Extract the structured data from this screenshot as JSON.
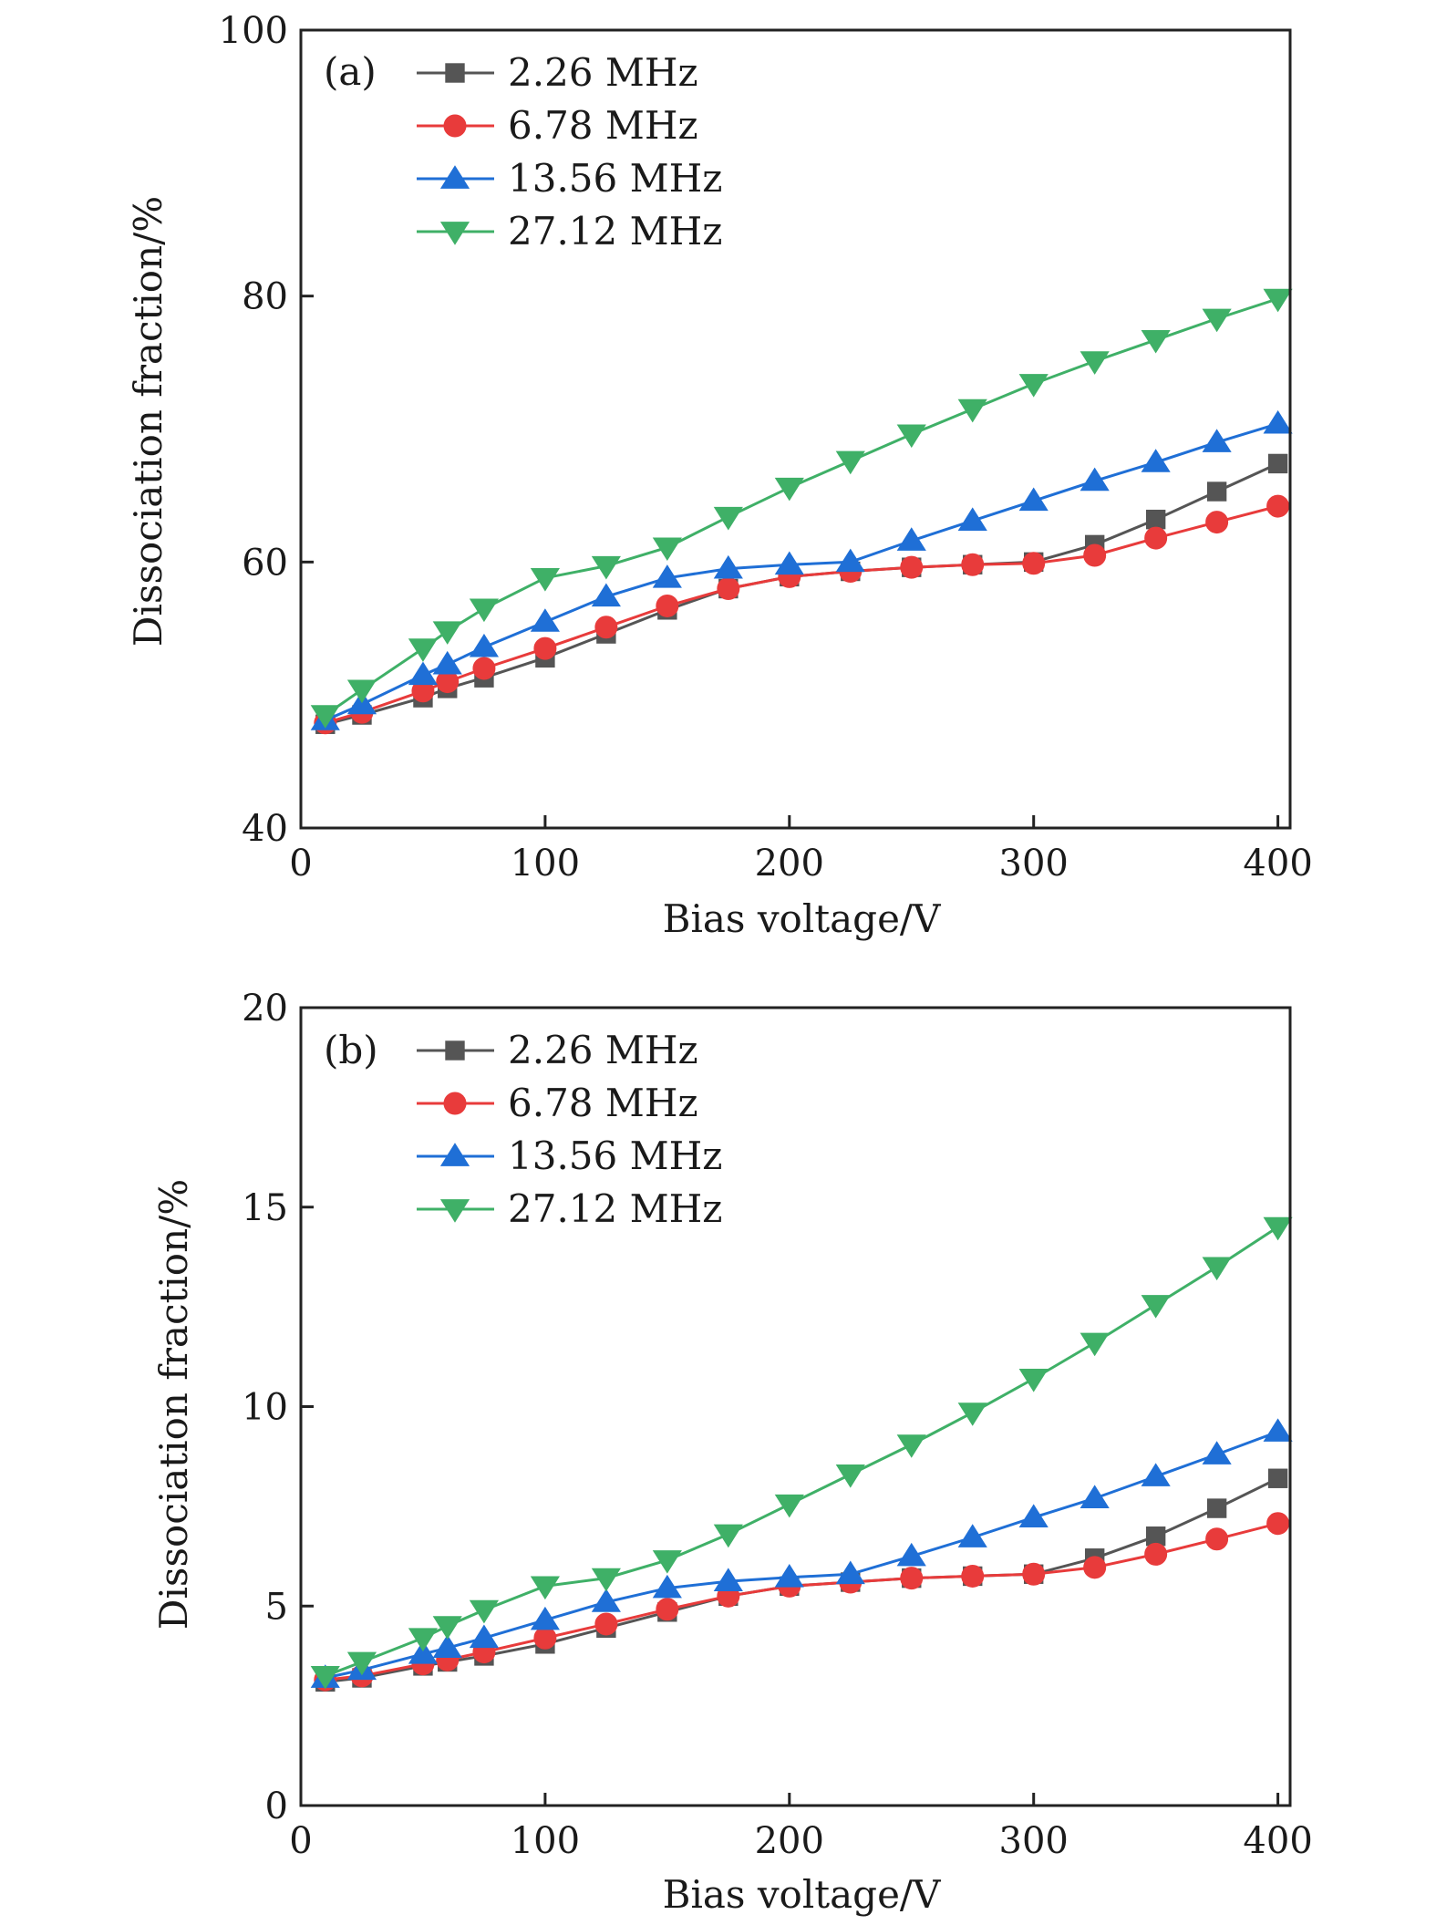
{
  "panels": [
    {
      "tag": "(a)",
      "xlabel": "Bias voltage/V",
      "ylabel": "Dissociation fraction/%",
      "xlim": [
        0,
        405
      ],
      "ylim": [
        40,
        100
      ],
      "xticks": [
        0,
        100,
        200,
        300,
        400
      ],
      "yticks": [
        40,
        60,
        80,
        100
      ],
      "xtick_labels": [
        "0",
        "100",
        "200",
        "300",
        "400"
      ],
      "ytick_labels": [
        "40",
        "60",
        "80",
        "100"
      ]
    },
    {
      "tag": "(b)",
      "xlabel": "Bias voltage/V",
      "ylabel": "Dissociation fraction/%",
      "xlim": [
        0,
        405
      ],
      "ylim": [
        0,
        20
      ],
      "xticks": [
        0,
        100,
        200,
        300,
        400
      ],
      "yticks": [
        0,
        5,
        10,
        15,
        20
      ],
      "xtick_labels": [
        "0",
        "100",
        "200",
        "300",
        "400"
      ],
      "ytick_labels": [
        "0",
        "5",
        "10",
        "15",
        "20"
      ]
    }
  ],
  "legend_position": "top-left",
  "chart_data": [
    {
      "type": "line",
      "x": [
        10,
        25,
        50,
        60,
        75,
        100,
        125,
        150,
        175,
        200,
        225,
        250,
        275,
        300,
        325,
        350,
        375,
        400
      ],
      "xlim": [
        0,
        405
      ],
      "ylim": [
        40,
        100
      ],
      "series": [
        {
          "name": "2.26 MHz",
          "marker": "square",
          "color": "#555555",
          "values": [
            47.8,
            48.5,
            49.8,
            50.5,
            51.3,
            52.8,
            54.6,
            56.4,
            58.0,
            58.9,
            59.3,
            59.6,
            59.8,
            60.0,
            61.3,
            63.2,
            65.3,
            67.4
          ]
        },
        {
          "name": "6.78 MHz",
          "marker": "circle",
          "color": "#e83b3b",
          "values": [
            47.9,
            48.7,
            50.3,
            51.0,
            52.0,
            53.5,
            55.1,
            56.7,
            58.0,
            58.9,
            59.3,
            59.6,
            59.8,
            59.9,
            60.5,
            61.8,
            63.0,
            64.2
          ]
        },
        {
          "name": "13.56 MHz",
          "marker": "triangle-up",
          "color": "#1f6fd6",
          "values": [
            48.1,
            49.3,
            51.5,
            52.3,
            53.6,
            55.5,
            57.4,
            58.8,
            59.5,
            59.8,
            60.0,
            61.6,
            63.1,
            64.6,
            66.1,
            67.5,
            69.0,
            70.4
          ]
        },
        {
          "name": "27.12 MHz",
          "marker": "triangle-down",
          "color": "#3fb067",
          "values": [
            48.5,
            50.4,
            53.5,
            54.8,
            56.5,
            58.8,
            59.7,
            61.1,
            63.4,
            65.6,
            67.6,
            69.6,
            71.5,
            73.4,
            75.1,
            76.7,
            78.3,
            79.8
          ]
        }
      ]
    },
    {
      "type": "line",
      "x": [
        10,
        25,
        50,
        60,
        75,
        100,
        125,
        150,
        175,
        200,
        225,
        250,
        275,
        300,
        325,
        350,
        375,
        400
      ],
      "xlim": [
        0,
        405
      ],
      "ylim": [
        0,
        20
      ],
      "series": [
        {
          "name": "2.26 MHz",
          "marker": "square",
          "color": "#555555",
          "values": [
            3.1,
            3.2,
            3.5,
            3.6,
            3.75,
            4.05,
            4.45,
            4.85,
            5.25,
            5.5,
            5.6,
            5.7,
            5.75,
            5.8,
            6.2,
            6.75,
            7.45,
            8.2
          ]
        },
        {
          "name": "6.78 MHz",
          "marker": "circle",
          "color": "#e83b3b",
          "values": [
            3.15,
            3.25,
            3.55,
            3.65,
            3.85,
            4.2,
            4.55,
            4.92,
            5.25,
            5.5,
            5.6,
            5.7,
            5.75,
            5.8,
            5.97,
            6.3,
            6.68,
            7.07
          ]
        },
        {
          "name": "13.56 MHz",
          "marker": "triangle-up",
          "color": "#1f6fd6",
          "values": [
            3.2,
            3.4,
            3.8,
            3.95,
            4.2,
            4.65,
            5.1,
            5.45,
            5.62,
            5.72,
            5.8,
            6.25,
            6.72,
            7.22,
            7.7,
            8.25,
            8.8,
            9.37
          ]
        },
        {
          "name": "27.12 MHz",
          "marker": "triangle-down",
          "color": "#3fb067",
          "values": [
            3.25,
            3.6,
            4.2,
            4.5,
            4.9,
            5.5,
            5.7,
            6.15,
            6.8,
            7.55,
            8.3,
            9.05,
            9.85,
            10.7,
            11.6,
            12.55,
            13.5,
            14.5
          ]
        }
      ]
    }
  ]
}
